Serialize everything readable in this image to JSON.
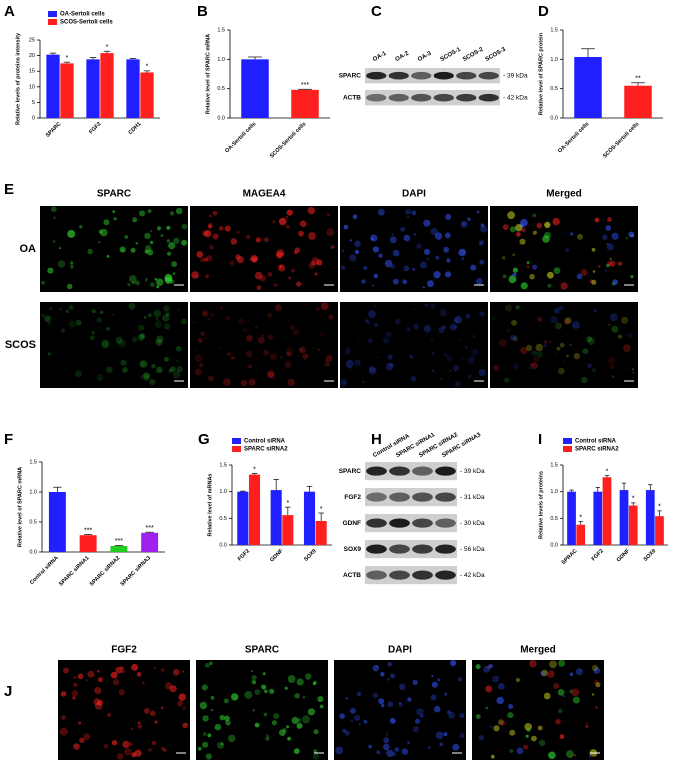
{
  "chart_data": [
    {
      "type": "bar",
      "panel": "A",
      "ylabel": "Relative levels of proteins intensity",
      "categories": [
        "SPARC",
        "FGF2",
        "CDH1"
      ],
      "series": [
        {
          "name": "OA-Sertoli cells",
          "color": "#1f1fff",
          "values": [
            20.3,
            18.8,
            18.8
          ],
          "errors": [
            0.5,
            0.6,
            0.3
          ],
          "annotations": [
            null,
            null,
            null
          ]
        },
        {
          "name": "SCOS-Sertoli cells",
          "color": "#ff1f1f",
          "values": [
            17.5,
            20.8,
            14.6
          ],
          "errors": [
            0.4,
            0.6,
            0.5
          ],
          "annotations": [
            "*",
            "*",
            "*"
          ]
        }
      ],
      "ylim": [
        0,
        25
      ],
      "yticks": [
        0,
        5,
        10,
        15,
        20,
        25
      ]
    },
    {
      "type": "bar",
      "panel": "B",
      "ylabel": "Relative level of SPARC mRNA",
      "categories": [
        "OA-Sertoli cells",
        "SCOS-Sertoli cells"
      ],
      "values": [
        1.0,
        0.48
      ],
      "errors": [
        0.04,
        0.01
      ],
      "colors": [
        "#1f1fff",
        "#ff1f1f"
      ],
      "annotations": [
        null,
        "***"
      ],
      "ylim": [
        0,
        1.5
      ],
      "yticks": [
        {
          "value": 0,
          "label": "0.0"
        },
        0.5,
        {
          "value": 1,
          "label": "1.0"
        },
        1.5
      ]
    },
    {
      "type": "bar",
      "panel": "D",
      "ylabel": "Relative level of SPARC protein",
      "categories": [
        "OA-Sertoli cells",
        "SCOS-Sertoli cells"
      ],
      "values": [
        1.04,
        0.55
      ],
      "errors": [
        0.14,
        0.05
      ],
      "colors": [
        "#1f1fff",
        "#ff1f1f"
      ],
      "annotations": [
        null,
        "**"
      ],
      "ylim": [
        0,
        1.5
      ],
      "yticks": [
        {
          "value": 0,
          "label": "0.0"
        },
        0.5,
        {
          "value": 1,
          "label": "1.0"
        },
        1.5
      ]
    },
    {
      "type": "bar",
      "panel": "F",
      "ylabel": "Relative level of SPARC mRNA",
      "categories": [
        "Control siRNA",
        "SPARC siRNA1",
        "SPARC siRNA2",
        "SPARC siRNA3"
      ],
      "values": [
        1.0,
        0.28,
        0.1,
        0.32
      ],
      "errors": [
        0.08,
        0.01,
        0.01,
        0.01
      ],
      "colors": [
        "#1f1fff",
        "#ff1f1f",
        "#22cc22",
        "#a020f0"
      ],
      "annotations": [
        null,
        "***",
        "***",
        "***"
      ],
      "ylim": [
        0,
        1.5
      ],
      "yticks": [
        {
          "value": 0,
          "label": "0.0"
        },
        0.5,
        {
          "value": 1,
          "label": "1.0"
        },
        1.5
      ]
    },
    {
      "type": "bar",
      "panel": "G",
      "ylabel": "Relative level of mRNAs",
      "categories": [
        "FGF2",
        "GDNF",
        "SOX9"
      ],
      "series": [
        {
          "name": "Control siRNA",
          "color": "#1f1fff",
          "values": [
            1.0,
            1.03,
            1.0
          ],
          "errors": [
            0.01,
            0.2,
            0.1
          ],
          "annotations": [
            null,
            null,
            null
          ]
        },
        {
          "name": "SPARC siRNA2",
          "color": "#ff1f1f",
          "values": [
            1.32,
            0.56,
            0.45
          ],
          "errors": [
            0.02,
            0.15,
            0.15
          ],
          "annotations": [
            "*",
            "*",
            "*"
          ]
        }
      ],
      "ylim": [
        0,
        1.5
      ],
      "yticks": [
        {
          "value": 0,
          "label": "0.0"
        },
        0.5,
        {
          "value": 1,
          "label": "1.0"
        },
        1.5
      ]
    },
    {
      "type": "bar",
      "panel": "I",
      "ylabel": "Relative levels of proteins",
      "categories": [
        "SPRAC",
        "FGF2",
        "GDNF",
        "SOX9"
      ],
      "series": [
        {
          "name": "Control siRNA",
          "color": "#1f1fff",
          "values": [
            1.0,
            1.0,
            1.03,
            1.03
          ],
          "errors": [
            0.03,
            0.08,
            0.13,
            0.1
          ],
          "annotations": [
            null,
            null,
            null,
            null
          ]
        },
        {
          "name": "SPARC siRNA2",
          "color": "#ff1f1f",
          "values": [
            0.38,
            1.27,
            0.74,
            0.54
          ],
          "errors": [
            0.06,
            0.03,
            0.05,
            0.1
          ],
          "annotations": [
            "*",
            "*",
            "*",
            "*"
          ]
        }
      ],
      "ylim": [
        0,
        1.5
      ],
      "yticks": [
        {
          "value": 0,
          "label": "0.0"
        },
        0.5,
        {
          "value": 1,
          "label": "1.0"
        },
        1.5
      ]
    }
  ],
  "blots": [
    {
      "panel": "C",
      "lanes": [
        "OA-1",
        "OA-2",
        "OA-3",
        "SCOS-1",
        "SCOS-2",
        "SCOS-3"
      ],
      "rows": [
        {
          "protein": "SPARC",
          "size": "- 39 kDa"
        },
        {
          "protein": "ACTB",
          "size": "- 42 kDa"
        }
      ]
    },
    {
      "panel": "H",
      "lanes": [
        "Control siRNA",
        "SPARC siRNA1",
        "SPARC siRNA2",
        "SPARC siRNA3"
      ],
      "rows": [
        {
          "protein": "SPARC",
          "size": "- 39 kDa"
        },
        {
          "protein": "FGF2",
          "size": "- 31 kDa"
        },
        {
          "protein": "GDNF",
          "size": "- 30 kDa"
        },
        {
          "protein": "SOX9",
          "size": "- 56 kDa"
        },
        {
          "protein": "ACTB",
          "size": "- 42 kDa"
        }
      ]
    }
  ],
  "micrographs": [
    {
      "panel": "E",
      "columns": [
        "SPARC",
        "MAGEA4",
        "DAPI",
        "Merged"
      ],
      "rows": [
        "OA",
        "SCOS"
      ],
      "scale_bar": "50 μm"
    },
    {
      "panel": "J",
      "columns": [
        "FGF2",
        "SPARC",
        "DAPI",
        "Merged"
      ],
      "scale_bar": "20 μm"
    }
  ]
}
